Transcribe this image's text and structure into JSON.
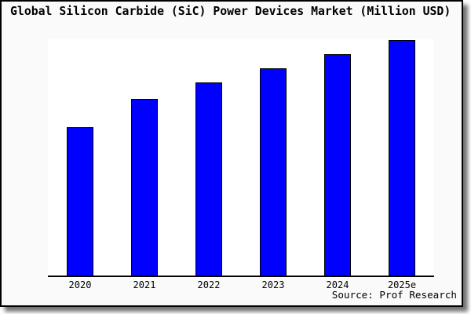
{
  "chart_data": {
    "type": "bar",
    "title": "Global Silicon Carbide (SiC) Power Devices Market (Million USD)",
    "categories": [
      "2020",
      "2021",
      "2022",
      "2023",
      "2024",
      "2025e"
    ],
    "values": [
      63,
      75,
      82,
      88,
      94,
      100
    ],
    "values_are_relative_pct_of_tallest_bar": true,
    "value_axis": {
      "visible": false,
      "range": [
        0,
        100
      ]
    },
    "xlabel": "",
    "ylabel": "",
    "grid": false,
    "legend": null,
    "source": "Source: Prof Research"
  },
  "colors": {
    "bar_fill": "#0000ff",
    "bar_border": "#000000",
    "axis_line": "#000000",
    "figure_background": "#fafafa",
    "plot_background": "#ffffff",
    "window_border": "#000000",
    "shadow": "#8c8c8c",
    "page_background": "#ffffff"
  }
}
